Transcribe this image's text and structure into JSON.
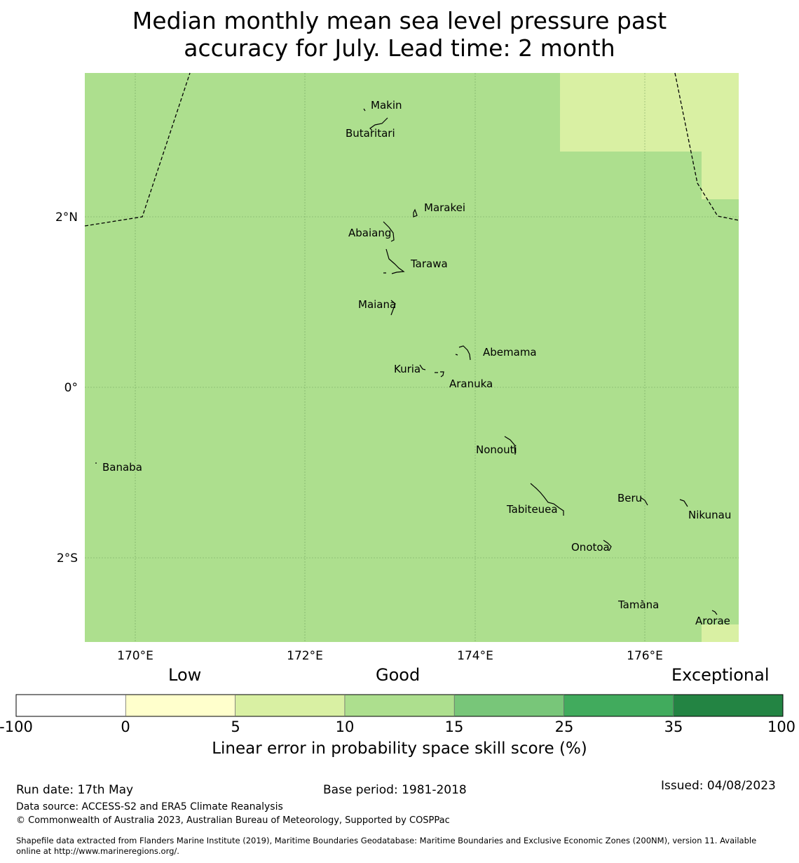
{
  "title": {
    "line1": "Median monthly mean sea level pressure past",
    "line2": "accuracy for July. Lead time: 2 month"
  },
  "map": {
    "background_color": "#addf8e",
    "lighter_patch_color": "#d9f0a3",
    "lon_labels": [
      "170°E",
      "172°E",
      "174°E",
      "176°E"
    ],
    "lat_labels": [
      "2°N",
      "0°",
      "2°S"
    ],
    "islands": [
      {
        "name": "Makin"
      },
      {
        "name": "Butaritari"
      },
      {
        "name": "Marakei"
      },
      {
        "name": "Abaiang"
      },
      {
        "name": "Tarawa"
      },
      {
        "name": "Maiana"
      },
      {
        "name": "Abemama"
      },
      {
        "name": "Kuria"
      },
      {
        "name": "Aranuka"
      },
      {
        "name": "Banaba"
      },
      {
        "name": "Nonouti"
      },
      {
        "name": "Beru"
      },
      {
        "name": "Tabiteuea"
      },
      {
        "name": "Nikunau"
      },
      {
        "name": "Onotoa"
      },
      {
        "name": "Tamana"
      },
      {
        "name": "Arorae"
      }
    ]
  },
  "legend": {
    "categories": [
      "Low",
      "Good",
      "Exceptional"
    ],
    "ticks": [
      "-100",
      "0",
      "5",
      "10",
      "15",
      "25",
      "35",
      "100"
    ],
    "colors": [
      "#ffffff",
      "#ffffcc",
      "#d9f0a3",
      "#addf8e",
      "#78c679",
      "#41ab5d",
      "#238443"
    ],
    "title": "Linear error in probability space skill score (%)"
  },
  "footer": {
    "run_date": "Run date: 17th May",
    "base_period": "Base period: 1981-2018",
    "issued": "Issued: 04/08/2023",
    "data_source": "Data source: ACCESS-S2 and ERA5 Climate Reanalysis",
    "copyright": "© Commonwealth of Australia 2023, Australian Bureau of Meteorology, Supported by COSPPac",
    "shapefile_line1": "Shapefile data extracted from Flanders Marine Institute (2019), Maritime Boundaries Geodatabase: Maritime Boundaries and Exclusive Economic Zones (200NM), version 11. Available",
    "shapefile_line2": "online at http://www.marineregions.org/."
  }
}
